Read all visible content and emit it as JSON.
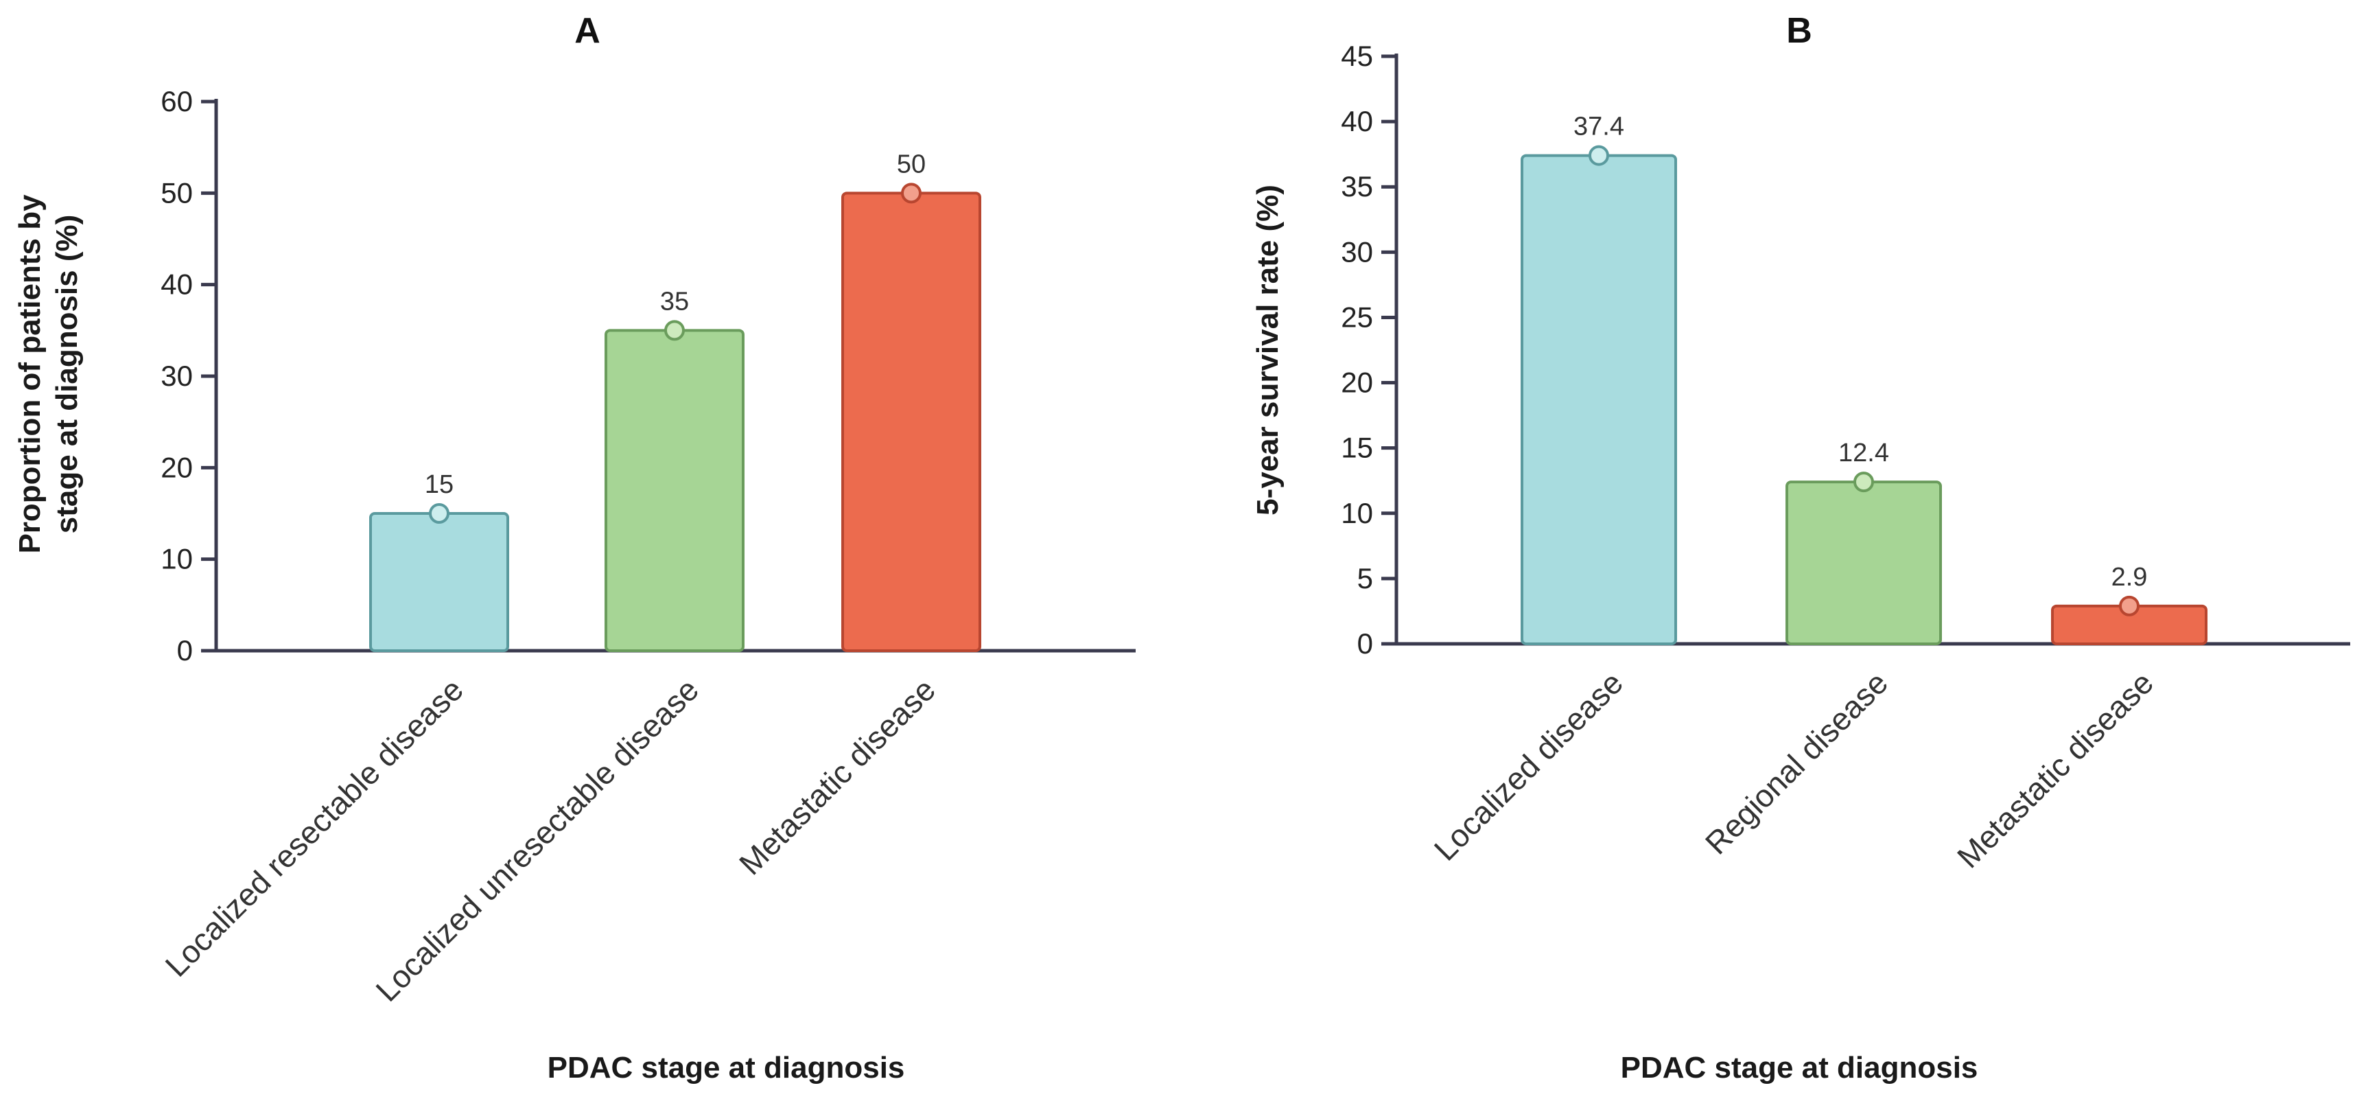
{
  "chart_data": [
    {
      "type": "bar",
      "panel": "A",
      "title": "A",
      "categories": [
        "Localized resectable disease",
        "Localized unresectable disease",
        "Metastatic disease"
      ],
      "values": [
        15,
        35,
        50
      ],
      "data_labels": [
        "15",
        "35",
        "50"
      ],
      "colors": [
        "#a8dcdf",
        "#a6d595",
        "#ec6b4e"
      ],
      "stroke_colors": [
        "#5a9a9e",
        "#6a9c5c",
        "#b84630"
      ],
      "marker_colors": [
        "#cdeeee",
        "#cdeabd",
        "#f2a08c"
      ],
      "ylabel_lines": [
        "Proportion of patients by",
        "stage at diagnosis (%)"
      ],
      "xlabel": "PDAC stage at diagnosis",
      "ylim": [
        0,
        60
      ],
      "yticks": [
        0,
        10,
        20,
        30,
        40,
        50,
        60
      ],
      "grid": false
    },
    {
      "type": "bar",
      "panel": "B",
      "title": "B",
      "categories": [
        "Localized disease",
        "Regional disease",
        "Metastatic disease"
      ],
      "values": [
        37.4,
        12.4,
        2.9
      ],
      "data_labels": [
        "37.4",
        "12.4",
        "2.9"
      ],
      "colors": [
        "#a8dcdf",
        "#a6d595",
        "#ec6b4e"
      ],
      "stroke_colors": [
        "#5a9a9e",
        "#6a9c5c",
        "#b84630"
      ],
      "marker_colors": [
        "#cdeeee",
        "#cdeabd",
        "#f2a08c"
      ],
      "ylabel_lines": [
        "5-year survival rate (%)"
      ],
      "xlabel": "PDAC stage at diagnosis",
      "ylim": [
        0,
        45
      ],
      "yticks": [
        0,
        5,
        10,
        15,
        20,
        25,
        30,
        35,
        40,
        45
      ],
      "grid": false
    }
  ]
}
